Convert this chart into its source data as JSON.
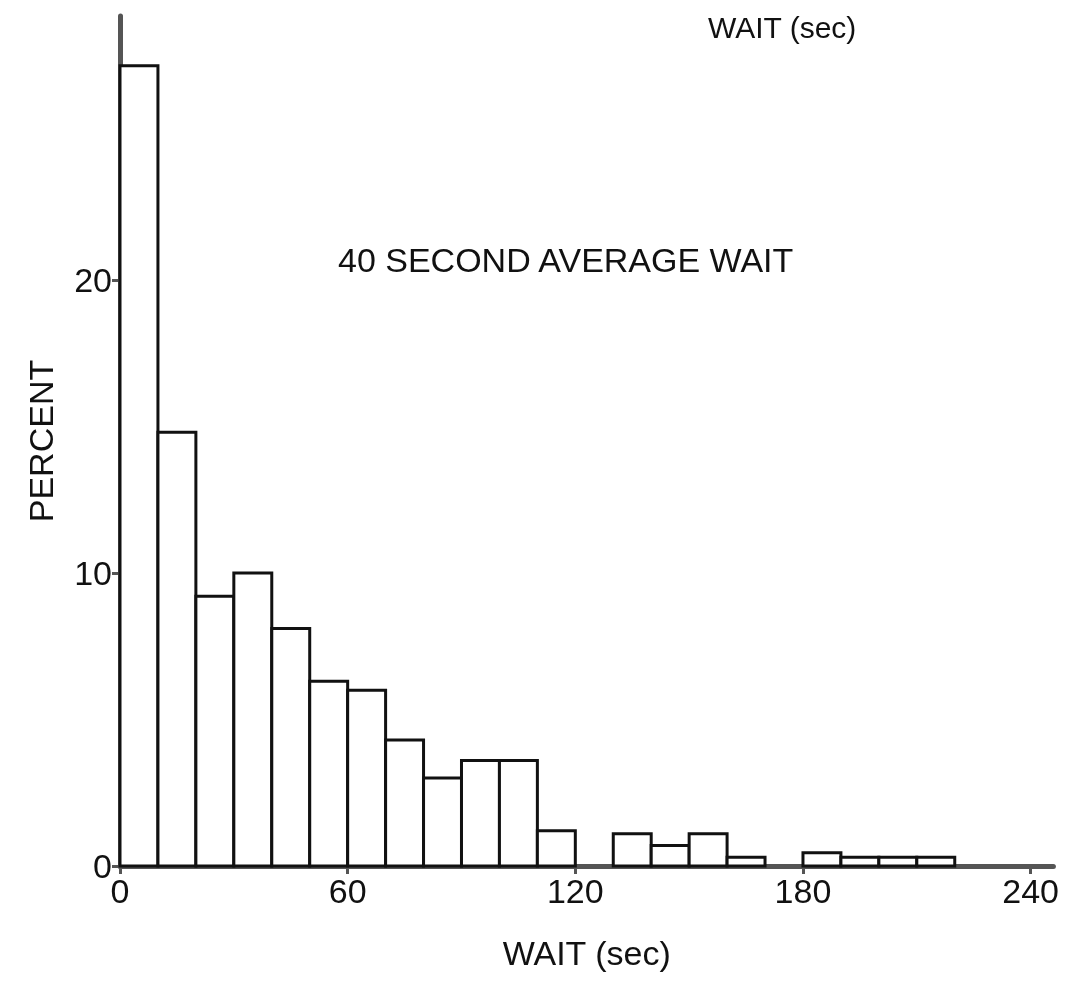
{
  "chart_data": {
    "type": "histogram",
    "xlabel": "WAIT (sec)",
    "ylabel": "PERCENT",
    "bins": [
      0,
      10,
      20,
      30,
      40,
      50,
      60,
      70,
      80,
      90,
      100,
      110,
      120,
      130,
      140,
      150,
      160,
      170,
      180,
      190,
      200,
      210,
      220
    ],
    "values": [
      27.3,
      14.8,
      9.2,
      10.0,
      8.1,
      6.3,
      6.0,
      4.3,
      3.0,
      3.6,
      3.6,
      1.2,
      0,
      1.1,
      0.7,
      1.1,
      0.3,
      0,
      0.45,
      0.3,
      0.3,
      0.3
    ],
    "color": "#ffffff",
    "xlim": [
      0,
      246
    ],
    "xticks": [
      0,
      60,
      120,
      180,
      240
    ],
    "ylim": [
      0,
      29
    ],
    "yticks": [
      0,
      10,
      20
    ],
    "grid": false,
    "annotations": [
      "WAIT (sec)",
      "40 SECOND AVERAGE WAIT"
    ]
  }
}
